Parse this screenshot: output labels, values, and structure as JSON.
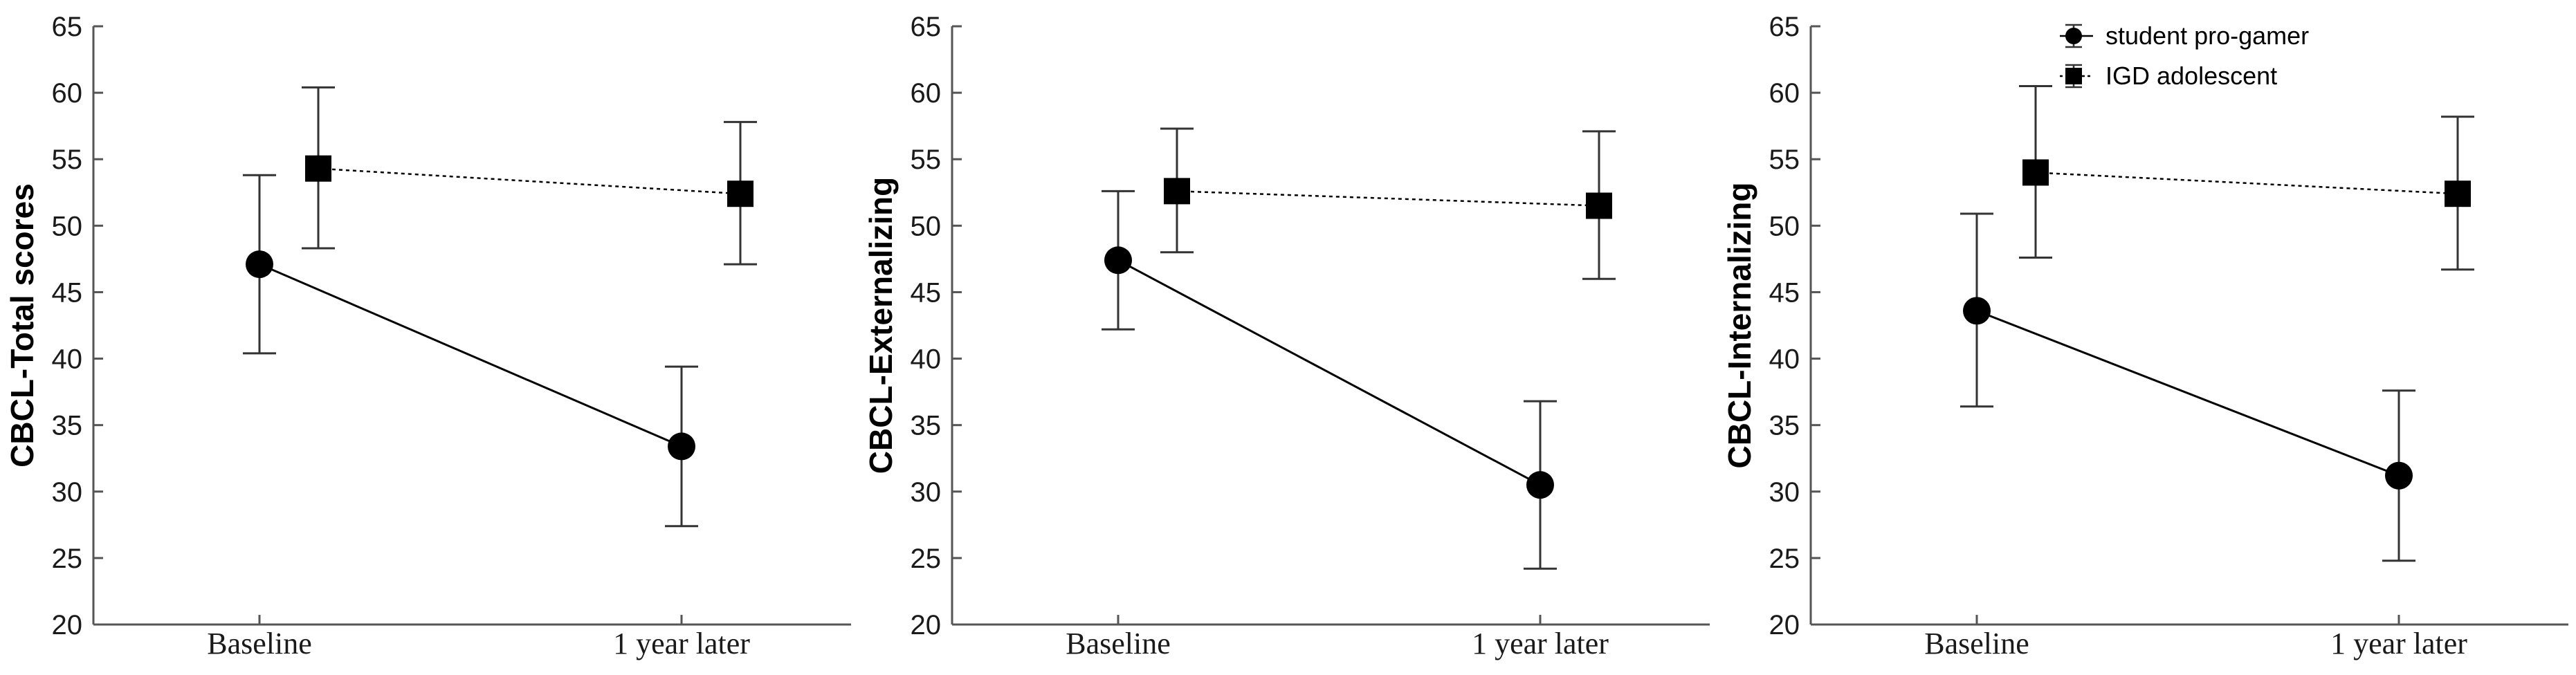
{
  "chart_data": [
    {
      "type": "line",
      "ylabel": "CBCL-Total scores",
      "xlabel": "",
      "categories": [
        "Baseline",
        "1 year later"
      ],
      "ylim": [
        20,
        65
      ],
      "yticks": [
        20,
        25,
        30,
        35,
        40,
        45,
        50,
        55,
        60,
        65
      ],
      "series": [
        {
          "name": "student pro-gamer",
          "marker": "circle",
          "line": "solid",
          "values": [
            47.1,
            33.4
          ],
          "err_low": [
            40.4,
            27.4
          ],
          "err_high": [
            53.8,
            39.4
          ]
        },
        {
          "name": "IGD adolescent",
          "marker": "square",
          "line": "dotted",
          "values": [
            54.3,
            52.4
          ],
          "err_low": [
            48.3,
            47.1
          ],
          "err_high": [
            60.4,
            57.8
          ]
        }
      ]
    },
    {
      "type": "line",
      "ylabel": "CBCL-Externalizing",
      "xlabel": "",
      "categories": [
        "Baseline",
        "1 year later"
      ],
      "ylim": [
        20,
        65
      ],
      "yticks": [
        20,
        25,
        30,
        35,
        40,
        45,
        50,
        55,
        60,
        65
      ],
      "series": [
        {
          "name": "student pro-gamer",
          "marker": "circle",
          "line": "solid",
          "values": [
            47.4,
            30.5
          ],
          "err_low": [
            42.2,
            24.2
          ],
          "err_high": [
            52.6,
            36.8
          ]
        },
        {
          "name": "IGD adolescent",
          "marker": "square",
          "line": "dotted",
          "values": [
            52.6,
            51.5
          ],
          "err_low": [
            48.0,
            46.0
          ],
          "err_high": [
            57.3,
            57.1
          ]
        }
      ]
    },
    {
      "type": "line",
      "ylabel": "CBCL-Internalizing",
      "xlabel": "",
      "categories": [
        "Baseline",
        "1 year later"
      ],
      "ylim": [
        20,
        65
      ],
      "yticks": [
        20,
        25,
        30,
        35,
        40,
        45,
        50,
        55,
        60,
        65
      ],
      "legend": {
        "position": "top-right",
        "entries": [
          "student pro-gamer",
          "IGD adolescent"
        ]
      },
      "series": [
        {
          "name": "student pro-gamer",
          "marker": "circle",
          "line": "solid",
          "values": [
            43.6,
            31.2
          ],
          "err_low": [
            36.4,
            24.8
          ],
          "err_high": [
            50.9,
            37.6
          ]
        },
        {
          "name": "IGD adolescent",
          "marker": "square",
          "line": "dotted",
          "values": [
            54.0,
            52.4
          ],
          "err_low": [
            47.6,
            46.7
          ],
          "err_high": [
            60.5,
            58.2
          ]
        }
      ]
    }
  ],
  "colors": {
    "marker": "#000000",
    "line": "#000000",
    "errorbar": "#333333"
  }
}
